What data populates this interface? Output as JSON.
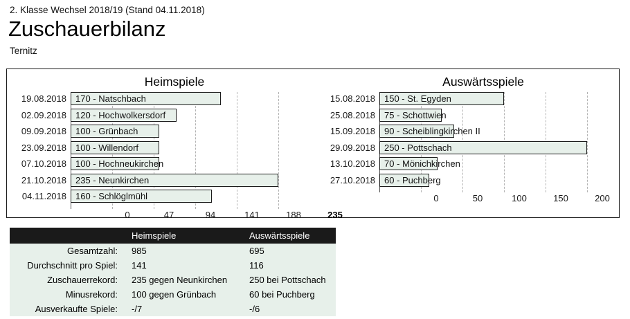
{
  "header": {
    "meta_line": "2. Klasse Wechsel 2018/19 (Stand 04.11.2018)",
    "title": "Zuschauerbilanz",
    "subtitle": "Ternitz"
  },
  "colors": {
    "bar_fill": "#e7f0ea",
    "bar_border": "#1c1c1c",
    "gridline": "#b3b3b3",
    "table_header_bg": "#1a1a1a",
    "table_body_bg": "#e7f0ea"
  },
  "chart_data": [
    {
      "type": "bar",
      "orientation": "horizontal",
      "title": "Heimspiele",
      "categories": [
        "19.08.2018",
        "02.09.2018",
        "09.09.2018",
        "23.09.2018",
        "07.10.2018",
        "21.10.2018",
        "04.11.2018"
      ],
      "values": [
        170,
        120,
        100,
        100,
        100,
        235,
        160
      ],
      "bar_labels": [
        "Natschbach",
        "Hochwolkersdorf",
        "Grünbach",
        "Willendorf",
        "Hochneukirchen",
        "Neunkirchen",
        "Schlöglmühl"
      ],
      "xlabel": "",
      "ylabel": "",
      "xlim": [
        0,
        235
      ],
      "xticks": [
        0,
        47,
        94,
        141,
        188,
        235
      ],
      "grid": "dashed-vertical",
      "legend": "none"
    },
    {
      "type": "bar",
      "orientation": "horizontal",
      "title": "Auswärtsspiele",
      "categories": [
        "15.08.2018",
        "25.08.2018",
        "15.09.2018",
        "29.09.2018",
        "13.10.2018",
        "27.10.2018"
      ],
      "values": [
        150,
        75,
        90,
        250,
        70,
        60
      ],
      "bar_labels": [
        "St. Egyden",
        "Schottwien",
        "Scheiblingkirchen II",
        "Pottschach",
        "Mönichkirchen",
        "Puchberg"
      ],
      "xlabel": "",
      "ylabel": "",
      "xlim": [
        0,
        250
      ],
      "xticks": [
        0,
        50,
        100,
        150,
        200,
        250
      ],
      "grid": "dashed-vertical",
      "legend": "none"
    }
  ],
  "summary_table": {
    "headers": [
      "",
      "Heimspiele",
      "Auswärtsspiele"
    ],
    "rows": [
      {
        "label": "Gesamtzahl:",
        "home": "985",
        "away": "695"
      },
      {
        "label": "Durchschnitt pro Spiel:",
        "home": "141",
        "away": "116"
      },
      {
        "label": "Zuschauerrekord:",
        "home": "235 gegen Neunkirchen",
        "away": "250 bei Pottschach"
      },
      {
        "label": "Minusrekord:",
        "home": "100 gegen Grünbach",
        "away": "60 bei Puchberg"
      },
      {
        "label": "Ausverkaufte Spiele:",
        "home": "-/7",
        "away": "-/6"
      }
    ]
  }
}
